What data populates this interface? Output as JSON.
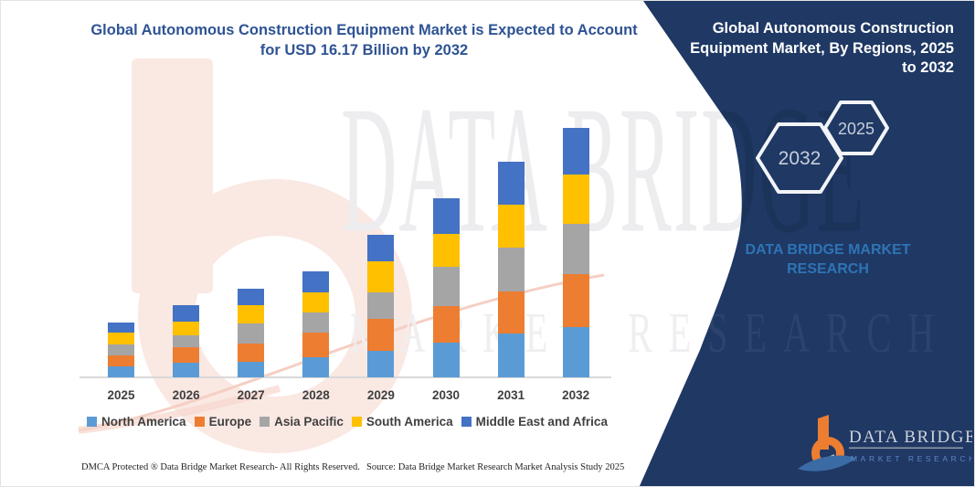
{
  "title": "Global Autonomous Construction Equipment Market is Expected to Account for USD 16.17 Billion by 2032",
  "chart_data": {
    "type": "bar",
    "stacked": true,
    "title": "Global Autonomous Construction Equipment Market is Expected to Account for USD 16.17 Billion by 2032",
    "unit": "USD Billion",
    "categories": [
      "2025",
      "2026",
      "2027",
      "2028",
      "2029",
      "2030",
      "2031",
      "2032"
    ],
    "series": [
      {
        "name": "North America",
        "color": "#5B9BD5",
        "values": [
          0.71,
          0.96,
          1.02,
          1.31,
          1.71,
          2.25,
          2.84,
          3.24
        ]
      },
      {
        "name": "Europe",
        "color": "#ED7D31",
        "values": [
          0.71,
          1.01,
          1.18,
          1.57,
          2.09,
          2.35,
          2.75,
          3.45
        ]
      },
      {
        "name": "Asia Pacific",
        "color": "#A5A5A5",
        "values": [
          0.71,
          0.74,
          1.28,
          1.33,
          1.73,
          2.55,
          2.84,
          3.24
        ]
      },
      {
        "name": "South America",
        "color": "#FFC000",
        "values": [
          0.77,
          0.93,
          1.18,
          1.32,
          2.0,
          2.16,
          2.75,
          3.24
        ]
      },
      {
        "name": "Middle East and Africa",
        "color": "#4472C4",
        "values": [
          0.65,
          1.03,
          1.08,
          1.37,
          1.72,
          2.29,
          2.78,
          3.0
        ]
      }
    ],
    "totals": [
      3.55,
      4.67,
      5.74,
      6.9,
      9.25,
      11.6,
      13.96,
      16.17
    ],
    "xlabel": "",
    "ylabel": "",
    "grid": false,
    "legend_position": "bottom",
    "axis_color": "#d9d9d9"
  },
  "side_panel": {
    "bg_color": "#1F3864",
    "title": "Global Autonomous Construction Equipment Market, By Regions, 2025 to 2032",
    "badge_back": "2032",
    "badge_front": "2025",
    "brand_text": "DATA BRIDGE MARKET RESEARCH",
    "logo": {
      "name": "DATA BRIDGE",
      "tagline": "MARKET RESEARCH",
      "accent_orange": "#ED7D31",
      "accent_blue": "#3B6BA5"
    }
  },
  "watermark": {
    "line1": "DATA BRIDGE",
    "line2": "MARKET RESEARCH"
  },
  "footer": {
    "left": "DMCA Protected ® Data Bridge Market Research-  All Rights Reserved.",
    "right": "Source: Data Bridge Market Research  Market Analysis Study 2025"
  }
}
